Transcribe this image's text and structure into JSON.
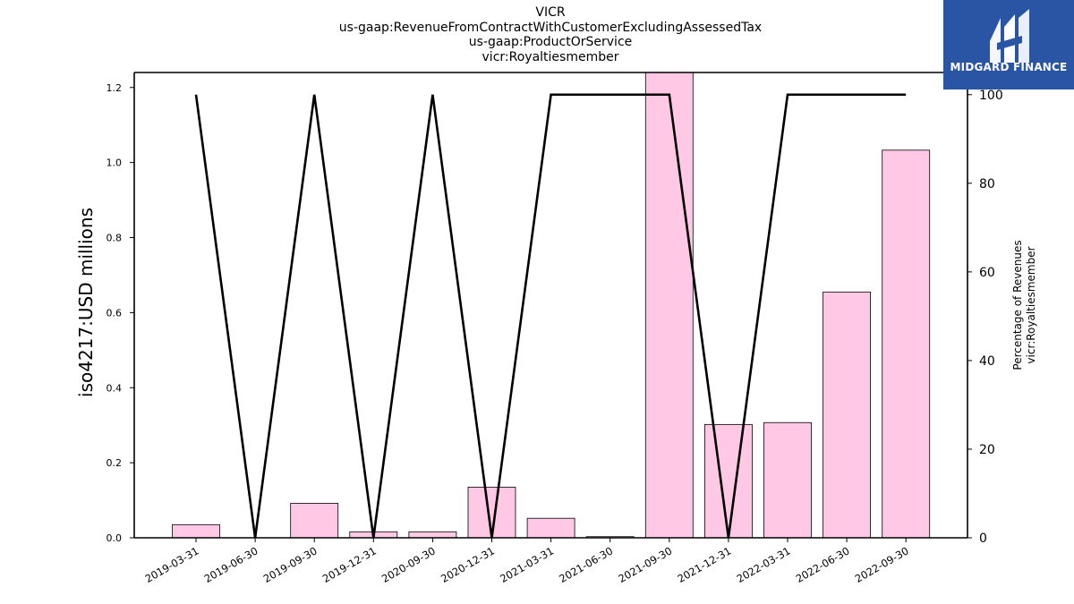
{
  "chart_data": {
    "type": "bar",
    "title_lines": [
      "VICR",
      "us-gaap:RevenueFromContractWithCustomerExcludingAssessedTax",
      "us-gaap:ProductOrService",
      "vicr:Royaltiesmember"
    ],
    "ylabel": "iso4217:USD  millions",
    "y2label_lines": [
      "Percentage of Revenues",
      "vicr:Royaltiesmember"
    ],
    "categories": [
      "2019-03-31",
      "2019-06-30",
      "2019-09-30",
      "2019-12-31",
      "2020-09-30",
      "2020-12-31",
      "2021-03-31",
      "2021-06-30",
      "2021-09-30",
      "2021-12-31",
      "2022-03-31",
      "2022-06-30",
      "2022-09-30"
    ],
    "series": [
      {
        "axis": "left",
        "kind": "bar",
        "color": "#ffc8e4",
        "values": [
          0.035,
          0.0,
          0.092,
          0.016,
          0.016,
          0.135,
          0.052,
          0.003,
          1.24,
          0.302,
          0.307,
          0.655,
          1.033
        ]
      },
      {
        "axis": "right",
        "kind": "line",
        "color": "#000000",
        "values": [
          100,
          0,
          100,
          0,
          100,
          0,
          100,
          100,
          100,
          0,
          100,
          100,
          100
        ]
      }
    ],
    "ylim": [
      0,
      1.24
    ],
    "yticks": [
      "0.0",
      "0.2",
      "0.4",
      "0.6",
      "0.8",
      "1.0",
      "1.2"
    ],
    "y2lim": [
      0,
      105
    ],
    "y2ticks": [
      "0",
      "20",
      "40",
      "60",
      "80",
      "100"
    ],
    "grid": false
  },
  "logo": {
    "text": "MIDGARD FINANCE",
    "background": "#2a55a5"
  }
}
